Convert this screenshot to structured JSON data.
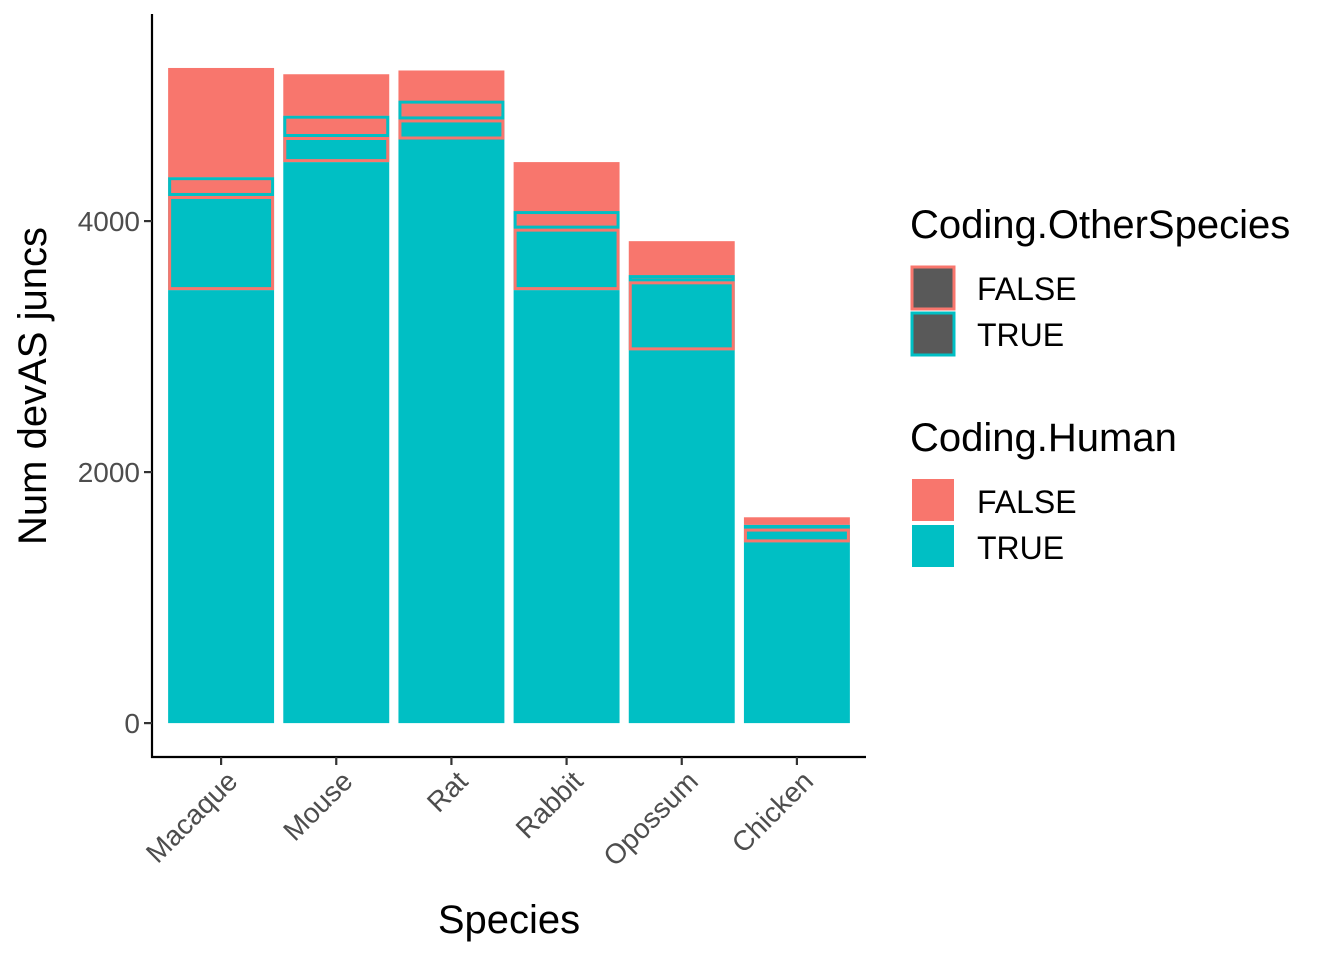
{
  "chart_data": {
    "type": "bar",
    "xlabel": "Species",
    "ylabel": "Num devAS juncs",
    "categories": [
      "Macaque",
      "Mouse",
      "Rat",
      "Rabbit",
      "Opossum",
      "Chicken"
    ],
    "yticks": [
      "0",
      "2000",
      "4000"
    ],
    "ylim": [
      -270,
      5650
    ],
    "grid": false,
    "legend_position": "right",
    "series": [
      {
        "name": "Coding.Human TRUE / Coding.OtherSpecies TRUE",
        "values": [
          3450,
          4470,
          4650,
          3450,
          2970,
          1440
        ]
      },
      {
        "name": "Coding.Human TRUE / Coding.OtherSpecies FALSE",
        "values": [
          750,
          200,
          160,
          490,
          550,
          110
        ]
      },
      {
        "name": "Coding.Human FALSE / Coding.OtherSpecies TRUE",
        "values": [
          150,
          170,
          150,
          140,
          50,
          30
        ]
      },
      {
        "name": "Coding.Human FALSE / Coding.OtherSpecies FALSE",
        "values": [
          870,
          330,
          240,
          390,
          270,
          60
        ]
      }
    ],
    "legends": [
      {
        "title": "Coding.OtherSpecies",
        "items": [
          {
            "label": "FALSE",
            "outline": "#F8766D",
            "fill": "#595959"
          },
          {
            "label": "TRUE",
            "outline": "#00BFC4",
            "fill": "#595959"
          }
        ]
      },
      {
        "title": "Coding.Human",
        "items": [
          {
            "label": "FALSE",
            "fill": "#F8766D"
          },
          {
            "label": "TRUE",
            "fill": "#00BFC4"
          }
        ]
      }
    ],
    "colors": {
      "false": "#F8766D",
      "true": "#00BFC4"
    }
  }
}
